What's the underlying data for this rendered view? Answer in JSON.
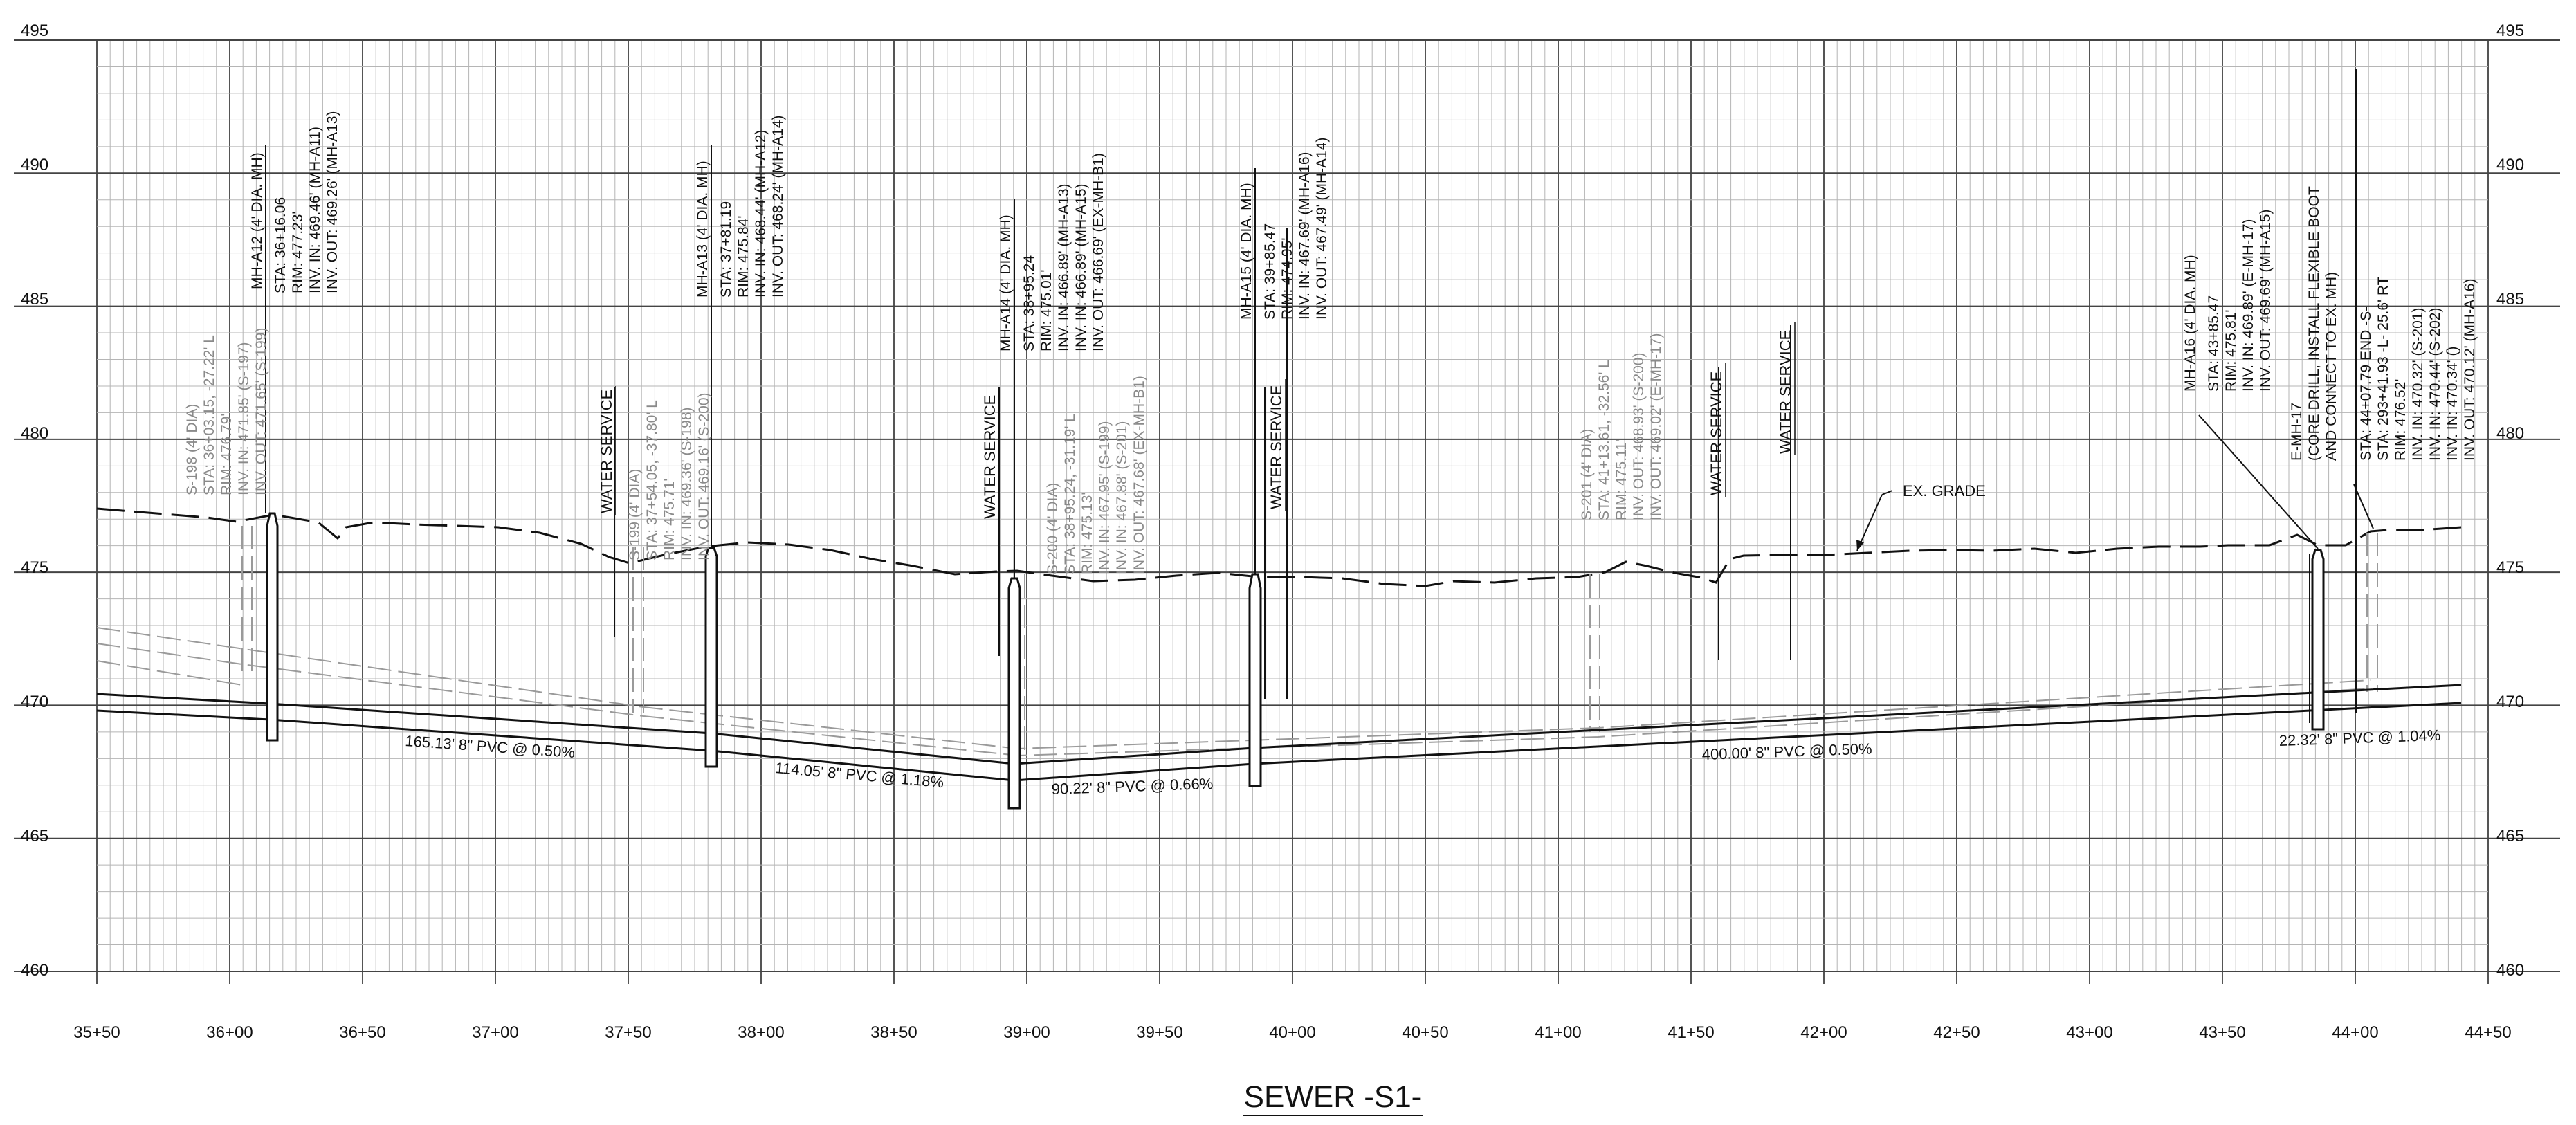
{
  "title": "SEWER -S1-",
  "elevation_labels": [
    "495",
    "490",
    "485",
    "480",
    "475",
    "470",
    "465",
    "460"
  ],
  "station_labels": [
    "35+50",
    "36+00",
    "36+50",
    "37+00",
    "37+50",
    "38+00",
    "38+50",
    "39+00",
    "39+50",
    "40+00",
    "40+50",
    "41+00",
    "41+50",
    "42+00",
    "42+50",
    "43+00",
    "43+50",
    "44+00",
    "44+50"
  ],
  "grade_label": "EX. GRADE",
  "water_service_label": "WATER SERVICE",
  "manholes": [
    {
      "name": "MH-A12 (4' DIA. MH)",
      "lines": [
        "STA: 36+16.06",
        "RIM: 477.23'",
        "INV. IN: 469.46' (MH-A11)",
        "INV. OUT: 469.26' (MH-A13)"
      ]
    },
    {
      "name": "MH-A13 (4' DIA. MH)",
      "lines": [
        "STA: 37+81.19",
        "RIM: 475.84'",
        "INV. IN: 468.44' (MH-A12)",
        "INV. OUT: 468.24' (MH-A14)"
      ]
    },
    {
      "name": "MH-A14 (4' DIA. MH)",
      "lines": [
        "STA: 38+95.24",
        "RIM: 475.01'",
        "INV. IN: 466.89' (MH-A13)",
        "INV. IN: 466.89' (MH-A15)",
        "INV. OUT: 466.69' (EX-MH-B1)"
      ]
    },
    {
      "name": "MH-A15 (4' DIA. MH)",
      "lines": [
        "STA: 39+85.47",
        "RIM: 474.95'",
        "INV. IN: 467.69' (MH-A16)",
        "INV. OUT: 467.49' (MH-A14)"
      ]
    },
    {
      "name": "MH-A16 (4' DIA. MH)",
      "lines": [
        "STA: 43+85.47",
        "RIM: 475.81'",
        "INV. IN: 469.89' (E-MH-17)",
        "INV. OUT: 469.69' (MH-A15)"
      ]
    },
    {
      "name": "E-MH-17",
      "lines": [
        "(CORE DRILL, INSTALL FLEXIBLE BOOT",
        "AND CONNECT TO EX. MH)"
      ]
    },
    {
      "name": "STA: 44+07.79 END -S-",
      "lines": [
        "STA: 293+41.93 -L- 25.6' RT",
        "RIM: 476.52'",
        "INV. IN: 470.32' (S-201)",
        "INV. IN: 470.44' (S-202)",
        "INV. IN: 470.34' ()",
        "INV. OUT: 470.12' (MH-A16)"
      ]
    }
  ],
  "existing_structures": [
    {
      "lines": [
        "S-198 (4' DIA)",
        "STA: 36+03.15, -27.22' L",
        "RIM: 476.79'",
        "INV. IN: 471.85' (S-197)",
        "INV. OUT: 471.65' (S-199)"
      ]
    },
    {
      "lines": [
        "S-199 (4' DIA)",
        "STA: 37+54.05, -37.80' L",
        "RIM: 475.71'",
        "INV. IN: 469.36' (S-198)",
        "INV. OUT: 469.16' (S-200)"
      ]
    },
    {
      "lines": [
        "S-200 (4' DIA)",
        "STA: 38+95.24, -31.19' L",
        "RIM: 475.13'",
        "INV. IN: 467.95' (S-199)",
        "INV. IN: 467.88' (S-201)",
        "INV. OUT: 467.68' (EX-MH-B1)"
      ]
    },
    {
      "lines": [
        "S-201 (4' DIA)",
        "STA: 41+13.61, -32.56' L",
        "RIM: 475.11'",
        "INV. OUT: 468.93' (S-200)",
        "INV. OUT: 469.02' (E-MH-17)"
      ]
    }
  ],
  "pipe_labels": [
    "165.13' 8\" PVC @ 0.50%",
    "114.05' 8\" PVC @ 1.18%",
    "90.22' 8\" PVC @ 0.66%",
    "400.00' 8\" PVC @ 0.50%",
    "22.32' 8\" PVC @ 1.04%"
  ],
  "colors": {
    "ink": "#111111",
    "grid": "#b5b5b5",
    "existing": "#9a9a9a"
  }
}
